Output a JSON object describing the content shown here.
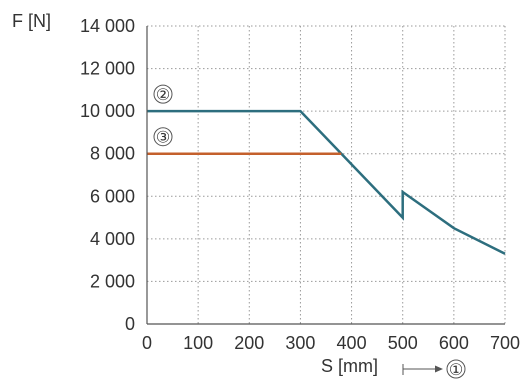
{
  "chart_data": {
    "type": "line",
    "xlabel": "S [mm]",
    "ylabel": "F [N]",
    "xlim": [
      0,
      700
    ],
    "ylim": [
      0,
      14000
    ],
    "xticks": [
      0,
      100,
      200,
      300,
      400,
      500,
      600,
      700
    ],
    "yticks": [
      0,
      2000,
      4000,
      6000,
      8000,
      10000,
      12000,
      14000
    ],
    "xtick_labels": [
      "0",
      "100",
      "200",
      "300",
      "400",
      "500",
      "600",
      "700"
    ],
    "ytick_labels": [
      "0",
      "2 000",
      "4 000",
      "6 000",
      "8 000",
      "10 000",
      "12 000",
      "14 000"
    ],
    "grid": true,
    "series": [
      {
        "marker": "②",
        "color": "#2d6e7e",
        "x": [
          0,
          300,
          500,
          500,
          600,
          700
        ],
        "y": [
          10000,
          10000,
          5000,
          6200,
          4500,
          3300
        ]
      },
      {
        "marker": "③",
        "color": "#c4602c",
        "x": [
          0,
          380
        ],
        "y": [
          8000,
          8000
        ]
      }
    ],
    "annotations": [
      {
        "label": "①",
        "at": "x-axis arrow"
      }
    ]
  }
}
